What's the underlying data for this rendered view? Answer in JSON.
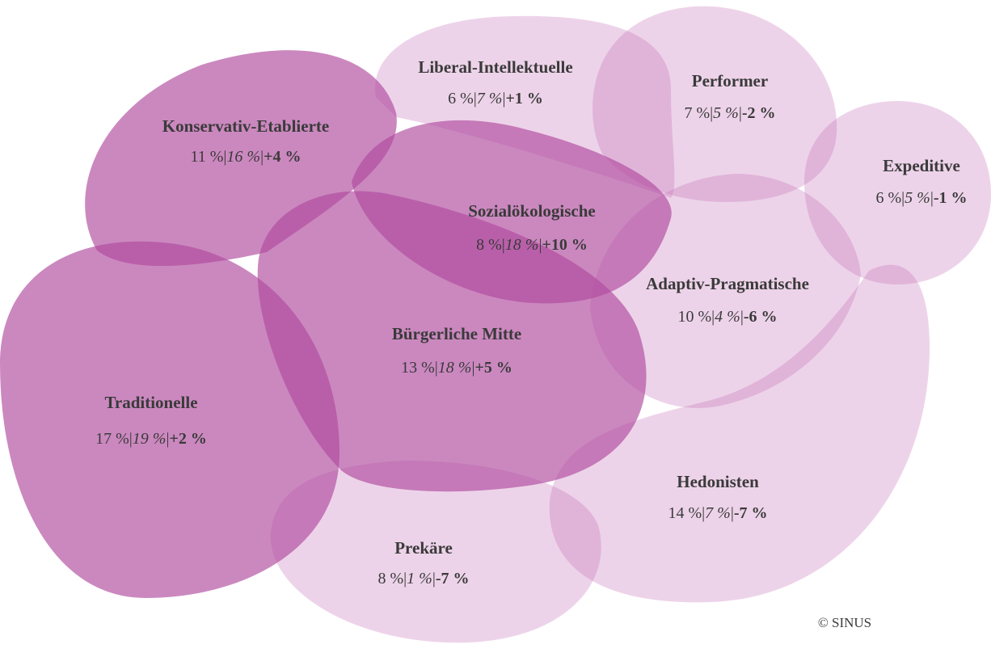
{
  "separator": "|",
  "nodes": [
    {
      "label": "Konservativ-Etablierte",
      "share": "11 %",
      "share_2": "16 %",
      "change": "+4 %"
    },
    {
      "label": "Liberal-Intellektuelle",
      "share": "6 %",
      "share_2": "7 %",
      "change": "+1 %"
    },
    {
      "label": "Performer",
      "share": "7 %",
      "share_2": "5 %",
      "change": "-2 %"
    },
    {
      "label": "Expeditive",
      "share": "6 %",
      "share_2": "5 %",
      "change": "-1 %"
    },
    {
      "label": "Sozialökologische",
      "share": "8 %",
      "share_2": "18 %",
      "change": "+10 %"
    },
    {
      "label": "Adaptiv-Pragmatische",
      "share": "10 %",
      "share_2": "4 %",
      "change": "-6 %"
    },
    {
      "label": "Bürgerliche Mitte",
      "share": "13 %",
      "share_2": "18 %",
      "change": "+5 %"
    },
    {
      "label": "Traditionelle",
      "share": "17 %",
      "share_2": "19 %",
      "change": "+2 %"
    },
    {
      "label": "Hedonisten",
      "share": "14 %",
      "share_2": "7 %",
      "change": "-7 %"
    },
    {
      "label": "Prekäre",
      "share": "8 %",
      "share_2": "1 %",
      "change": "-7 %"
    }
  ],
  "copyright": "© SINUS"
}
